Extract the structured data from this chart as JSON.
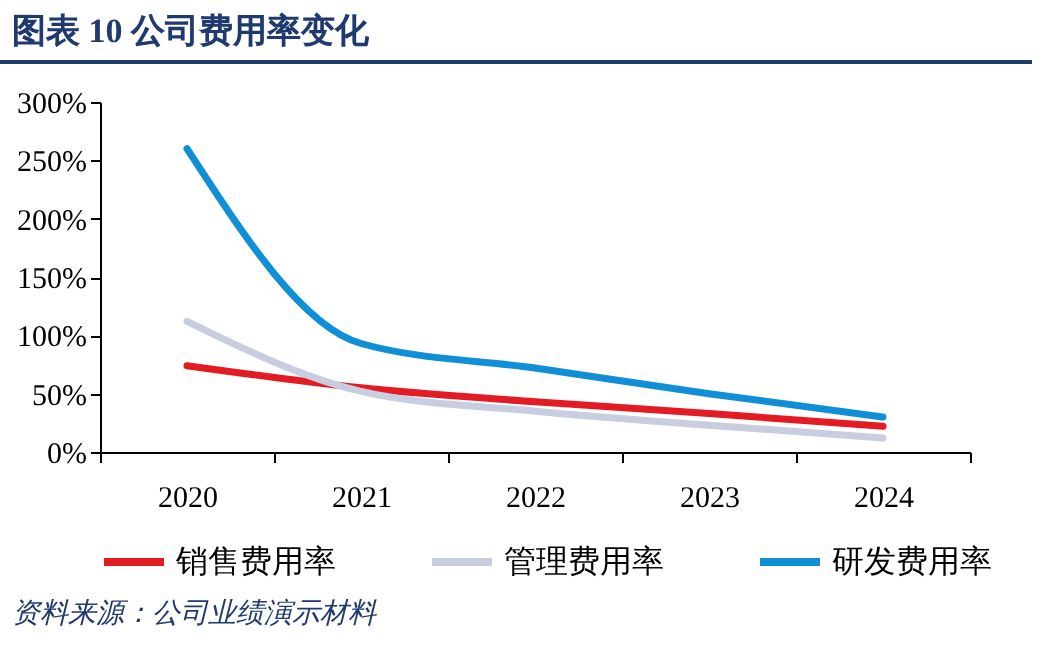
{
  "chart_data": {
    "type": "line",
    "title": "图表 10 公司费用率变化",
    "annotations": [
      "资料来源：公司业绩演示材料"
    ],
    "categories": [
      "2020",
      "2021",
      "2022",
      "2023",
      "2024"
    ],
    "series": [
      {
        "name": "销售费用率",
        "color": "#e31b23",
        "values": [
          74,
          55,
          43,
          33,
          22
        ]
      },
      {
        "name": "管理费用率",
        "color": "#c8cde0",
        "values": [
          112,
          52,
          35,
          23,
          12
        ]
      },
      {
        "name": "研发费用率",
        "color": "#108fd6",
        "values": [
          260,
          93,
          72,
          50,
          30
        ]
      }
    ],
    "ylim": [
      0,
      300
    ],
    "yticks": [
      {
        "value": 0,
        "label": "0%"
      },
      {
        "value": 50,
        "label": "50%"
      },
      {
        "value": 100,
        "label": "100%"
      },
      {
        "value": 150,
        "label": "150%"
      },
      {
        "value": 200,
        "label": "200%"
      },
      {
        "value": 250,
        "label": "250%"
      },
      {
        "value": 300,
        "label": "300%"
      }
    ],
    "grid": false,
    "legend": "bottom",
    "marker": "none",
    "line_style": "solid"
  }
}
